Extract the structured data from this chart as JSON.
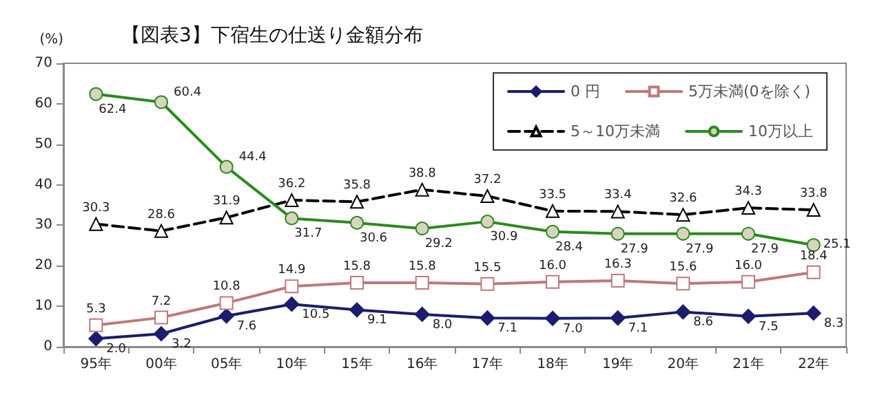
{
  "chart_data": {
    "type": "line",
    "title": "【図表3】下宿生の仕送り金額分布",
    "ylabel": "(%)",
    "categories": [
      "95年",
      "00年",
      "05年",
      "10年",
      "15年",
      "16年",
      "17年",
      "18年",
      "19年",
      "20年",
      "21年",
      "22年"
    ],
    "series": [
      {
        "name": "0 円",
        "color": "#1c1c6e",
        "marker": "diamond",
        "line_style": "solid",
        "values": [
          2,
          3.2,
          7.6,
          10.5,
          9.1,
          8,
          7.1,
          7,
          7.1,
          8.6,
          7.5,
          8.3
        ],
        "value_labels": [
          "2.0",
          "3.2",
          "7.6",
          "10.5",
          "9.1",
          "8.0",
          "7.1",
          "7.0",
          "7.1",
          "8.6",
          "7.5",
          "8.3"
        ]
      },
      {
        "name": "5万未満(0を除く)",
        "color": "#c07878",
        "marker": "square",
        "line_style": "solid",
        "values": [
          5.3,
          7.2,
          10.8,
          14.9,
          15.8,
          15.8,
          15.5,
          16,
          16.3,
          15.6,
          16,
          18.4
        ],
        "value_labels": [
          "5.3",
          "7.2",
          "10.8",
          "14.9",
          "15.8",
          "15.8",
          "15.5",
          "16.0",
          "16.3",
          "15.6",
          "16.0",
          "18.4"
        ]
      },
      {
        "name": "5～10万未満",
        "color": "#000000",
        "marker": "triangle",
        "line_style": "dashed",
        "values": [
          30.3,
          28.6,
          31.9,
          36.2,
          35.8,
          38.8,
          37.2,
          33.5,
          33.4,
          32.6,
          34.3,
          33.8
        ],
        "value_labels": [
          "30.3",
          "28.6",
          "31.9",
          "36.2",
          "35.8",
          "38.8",
          "37.2",
          "33.5",
          "33.4",
          "32.6",
          "34.3",
          "33.8"
        ]
      },
      {
        "name": "10万以上",
        "color": "#2a8a1e",
        "marker": "circle",
        "line_style": "solid",
        "values": [
          62.4,
          60.4,
          44.4,
          31.7,
          30.6,
          29.2,
          30.9,
          28.4,
          27.9,
          27.9,
          27.9,
          25.1
        ],
        "value_labels": [
          "62.4",
          "60.4",
          "44.4",
          "31.7",
          "30.6",
          "29.2",
          "30.9",
          "28.4",
          "27.9",
          "27.9",
          "27.9",
          "25.1"
        ]
      }
    ],
    "ylim": [
      0,
      70
    ],
    "yticks": [
      0,
      10,
      20,
      30,
      40,
      50,
      60,
      70
    ],
    "grid": false,
    "legend": "top right"
  }
}
